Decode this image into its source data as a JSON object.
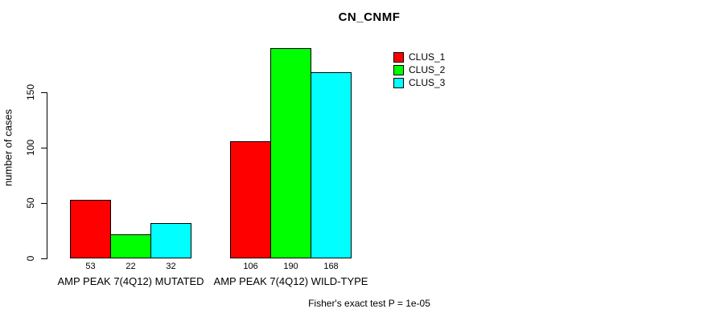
{
  "page": {
    "background": "#ffffff",
    "text_color": "#000000"
  },
  "chart_data": {
    "type": "bar",
    "title": "CN_CNMF",
    "ylabel": "number of cases",
    "xlabel": "",
    "footer": "Fisher's exact test P = 1e-05",
    "categories": [
      "AMP PEAK 7(4Q12) MUTATED",
      "AMP PEAK 7(4Q12) WILD-TYPE"
    ],
    "series": [
      {
        "name": "CLUS_1",
        "color": "#ff0000",
        "values": [
          53,
          106
        ]
      },
      {
        "name": "CLUS_2",
        "color": "#00ff00",
        "values": [
          22,
          190
        ]
      },
      {
        "name": "CLUS_3",
        "color": "#00ffff",
        "values": [
          32,
          168
        ]
      }
    ],
    "yticks": [
      0,
      50,
      100,
      150
    ],
    "ylim": [
      0,
      200
    ],
    "grid": false,
    "bar_value_labels": true,
    "legend_position": "top-right",
    "legend": [
      {
        "label": "CLUS_1",
        "color": "#ff0000"
      },
      {
        "label": "CLUS_2",
        "color": "#00ff00"
      },
      {
        "label": "CLUS_3",
        "color": "#00ffff"
      }
    ]
  }
}
